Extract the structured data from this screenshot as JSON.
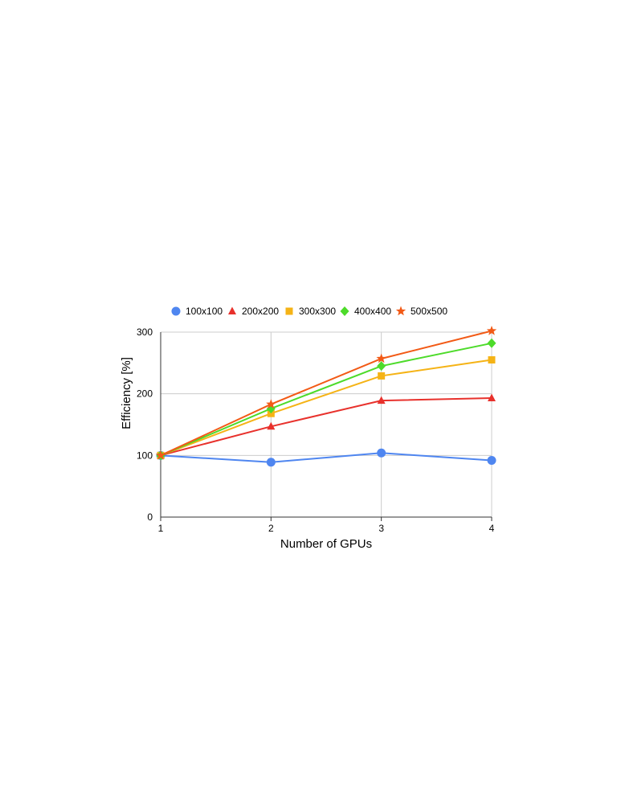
{
  "chart_data": {
    "type": "line",
    "title": "",
    "xlabel": "Number of GPUs",
    "ylabel": "Efficiency [%]",
    "x": [
      1,
      2,
      3,
      4
    ],
    "x_ticks": [
      "1",
      "2",
      "3",
      "4"
    ],
    "y_ticks": [
      "0",
      "100",
      "200",
      "300"
    ],
    "xlim": [
      1,
      4
    ],
    "ylim": [
      0,
      300
    ],
    "grid": true,
    "legend_position": "top",
    "series": [
      {
        "name": "100x100",
        "marker": "circle",
        "color": "#4f86f0",
        "values": [
          100,
          89,
          104,
          92
        ]
      },
      {
        "name": "200x200",
        "marker": "triangle",
        "color": "#e8312c",
        "values": [
          100,
          147,
          189,
          193
        ]
      },
      {
        "name": "300x300",
        "marker": "square",
        "color": "#f5b316",
        "values": [
          100,
          168,
          229,
          255
        ]
      },
      {
        "name": "400x400",
        "marker": "diamond",
        "color": "#4ddb2a",
        "values": [
          100,
          176,
          245,
          282
        ]
      },
      {
        "name": "500x500",
        "marker": "star",
        "color": "#f25a16",
        "values": [
          100,
          183,
          257,
          302
        ]
      }
    ]
  }
}
